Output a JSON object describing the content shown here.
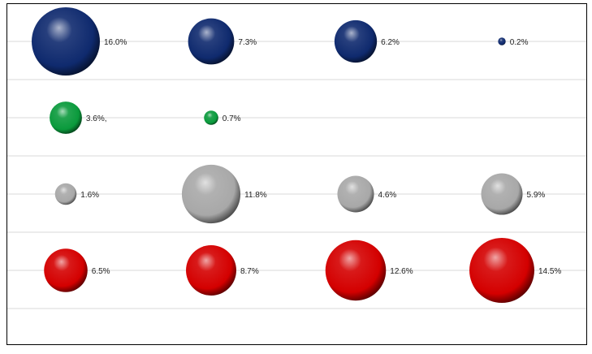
{
  "chart_data": {
    "type": "bubble",
    "title": "",
    "xlabel": "",
    "ylabel": "",
    "grid": "horizontal",
    "legend": "none",
    "columns": 4,
    "rows": 4,
    "series": [
      {
        "color": "#0f2a6e",
        "points": [
          {
            "col": 1,
            "row": 1,
            "value": 16.0,
            "label": "16.0%"
          },
          {
            "col": 2,
            "row": 1,
            "value": 7.3,
            "label": "7.3%"
          },
          {
            "col": 3,
            "row": 1,
            "value": 6.2,
            "label": "6.2%"
          },
          {
            "col": 4,
            "row": 1,
            "value": 0.2,
            "label": "0.2%"
          }
        ]
      },
      {
        "color": "#0a9a3c",
        "points": [
          {
            "col": 1,
            "row": 2,
            "value": 3.6,
            "label": "3.6%,"
          },
          {
            "col": 2,
            "row": 2,
            "value": 0.7,
            "label": "0.7%"
          }
        ]
      },
      {
        "color": "#a8a8a8",
        "points": [
          {
            "col": 1,
            "row": 3,
            "value": 1.6,
            "label": "1.6%"
          },
          {
            "col": 2,
            "row": 3,
            "value": 11.8,
            "label": "11.8%"
          },
          {
            "col": 3,
            "row": 3,
            "value": 4.6,
            "label": "4.6%"
          },
          {
            "col": 4,
            "row": 3,
            "value": 5.9,
            "label": "5.9%"
          }
        ]
      },
      {
        "color": "#d40000",
        "points": [
          {
            "col": 1,
            "row": 4,
            "value": 6.5,
            "label": "6.5%"
          },
          {
            "col": 2,
            "row": 4,
            "value": 8.7,
            "label": "8.7%"
          },
          {
            "col": 3,
            "row": 4,
            "value": 12.6,
            "label": "12.6%"
          },
          {
            "col": 4,
            "row": 4,
            "value": 14.5,
            "label": "14.5%"
          }
        ]
      }
    ]
  }
}
